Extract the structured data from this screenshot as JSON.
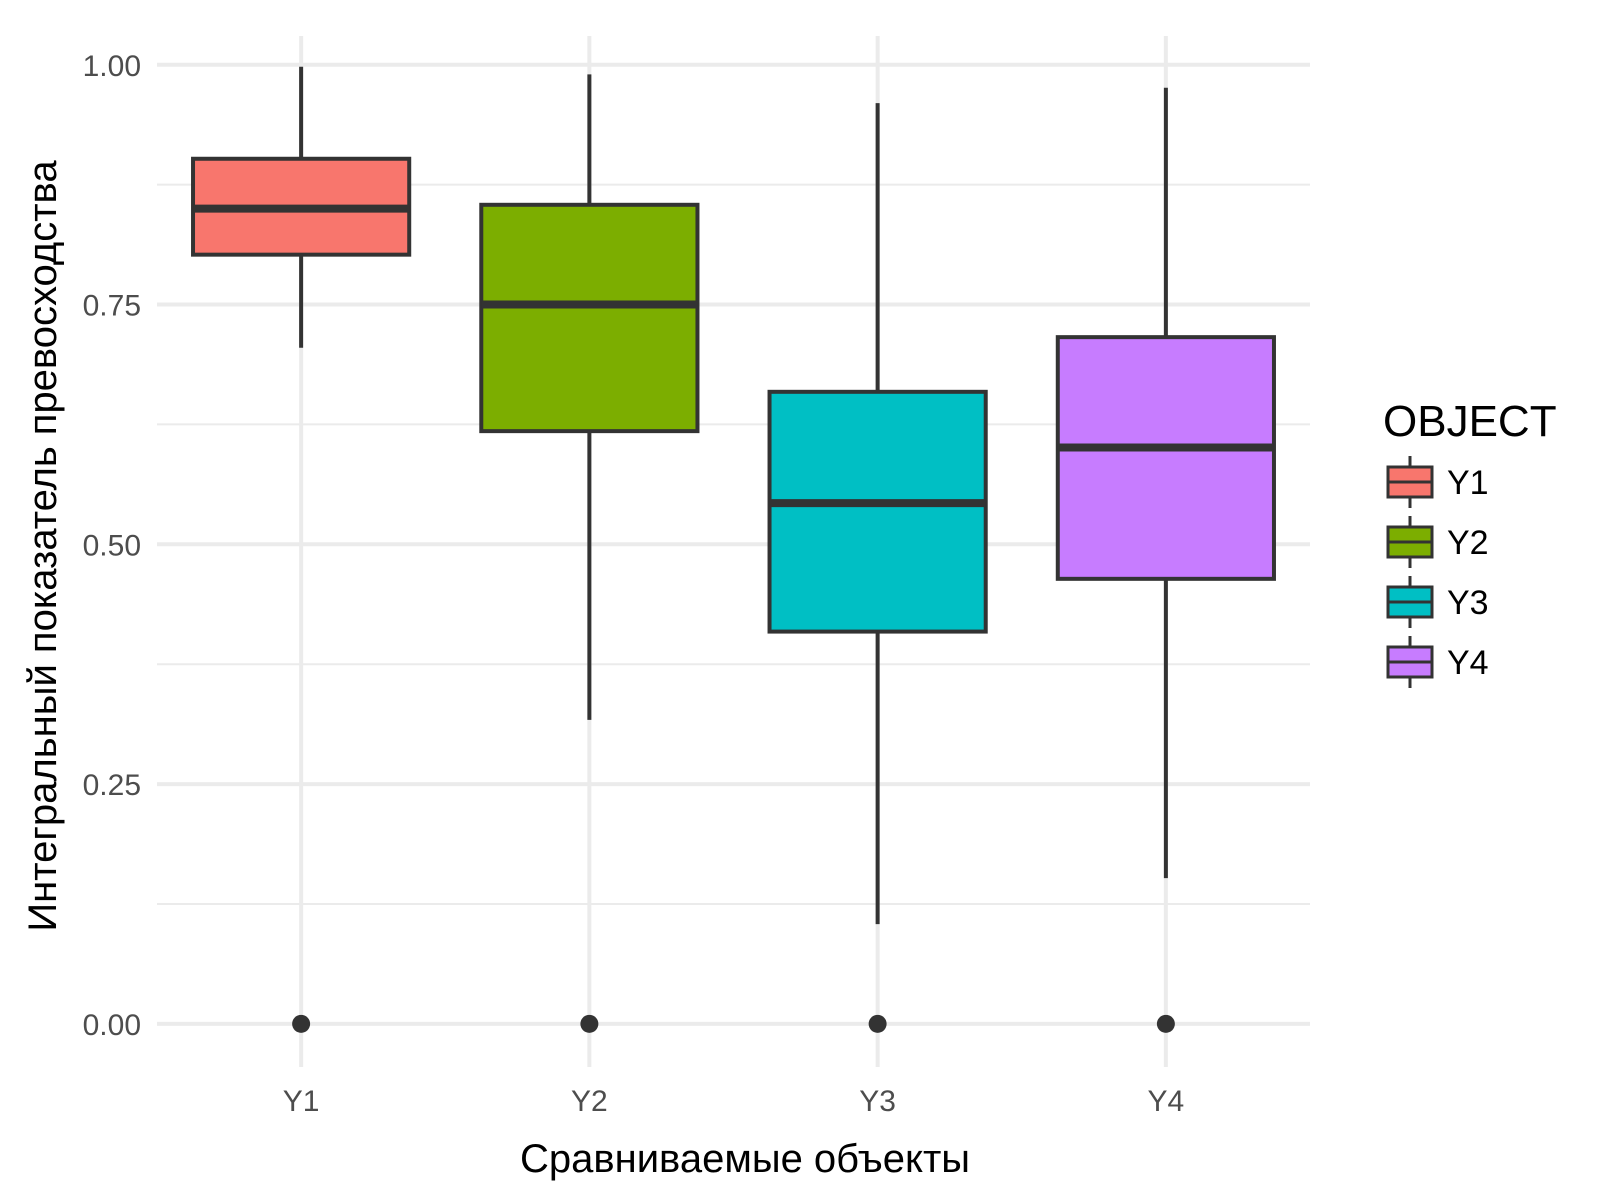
{
  "chart_data": {
    "type": "boxplot",
    "xlabel": "Сравниваемые объекты",
    "ylabel": "Интегральный показатель превосходства",
    "ylim": [
      -0.045,
      1.03
    ],
    "yticks": [
      {
        "value": 0,
        "label": "0.00"
      },
      {
        "value": 0.25,
        "label": "0.25"
      },
      {
        "value": 0.5,
        "label": "0.50"
      },
      {
        "value": 0.75,
        "label": "0.75"
      },
      {
        "value": 1,
        "label": "1.00"
      }
    ],
    "grid": true,
    "legend_title": "OBJECT",
    "legend_position": "right",
    "categories": [
      "Y1",
      "Y2",
      "Y3",
      "Y4"
    ],
    "series": [
      {
        "name": "Y1",
        "color": "#F8766D",
        "whisker_low": 0.705,
        "q1": 0.802,
        "median": 0.85,
        "q3": 0.902,
        "whisker_high": 0.998,
        "outliers": [
          0
        ]
      },
      {
        "name": "Y2",
        "color": "#7CAE00",
        "whisker_low": 0.317,
        "q1": 0.618,
        "median": 0.75,
        "q3": 0.854,
        "whisker_high": 0.99,
        "outliers": [
          0
        ]
      },
      {
        "name": "Y3",
        "color": "#00BFC4",
        "whisker_low": 0.104,
        "q1": 0.409,
        "median": 0.543,
        "q3": 0.659,
        "whisker_high": 0.96,
        "outliers": [
          0
        ]
      },
      {
        "name": "Y4",
        "color": "#C77CFF",
        "whisker_low": 0.152,
        "q1": 0.464,
        "median": 0.601,
        "q3": 0.716,
        "whisker_high": 0.976,
        "outliers": [
          0
        ]
      }
    ]
  }
}
